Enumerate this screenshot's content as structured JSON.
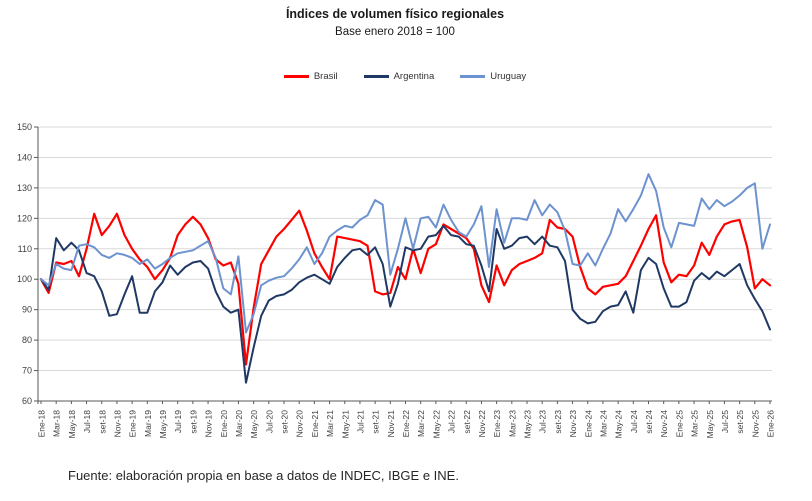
{
  "title": "Índices de volumen físico regionales",
  "subtitle": "Base enero 2018 = 100",
  "footer": "Fuente: elaboración propia en base a datos de INDEC, IBGE e INE.",
  "legend": [
    {
      "label": "Brasil",
      "color": "#FF0000"
    },
    {
      "label": "Argentina",
      "color": "#1F3864"
    },
    {
      "label": "Uruguay",
      "color": "#6C92CF"
    }
  ],
  "colors": {
    "brasil": "#FF0000",
    "argentina": "#1F3864",
    "uruguay": "#6C92CF",
    "gridline": "#D9D9D9",
    "axis": "#595959",
    "tick_text": "#404040"
  },
  "chart_data": {
    "type": "line",
    "title": "Índices de volumen físico regionales",
    "subtitle": "Base enero 2018 = 100",
    "xlabel": "",
    "ylabel": "",
    "ylim": [
      60,
      150
    ],
    "ytick_step": 10,
    "yticks": [
      150,
      140,
      130,
      120,
      110,
      100,
      90,
      80,
      70,
      60
    ],
    "grid": "horizontal",
    "legend_position": "top",
    "x_start": "Ene-18",
    "x_end": "Ene-26",
    "x_frequency": "monthly",
    "x_tick_labels": [
      "Ene-18",
      "Mar-18",
      "May-18",
      "Jul-18",
      "set-18",
      "Nov-18",
      "Ene-19",
      "Mar-19",
      "May-19",
      "Jul-19",
      "set-19",
      "Nov-19",
      "Ene-20",
      "Mar-20",
      "May-20",
      "Jul-20",
      "set-20",
      "Nov-20",
      "Ene-21",
      "Mar-21",
      "May-21",
      "Jul-21",
      "set-21",
      "Nov-21",
      "Ene-22",
      "Mar-22",
      "May-22",
      "Jul-22",
      "set-22",
      "Nov-22",
      "Ene-23",
      "Mar-23",
      "May-23",
      "Jul-23",
      "set-23",
      "Nov-23",
      "Ene-24",
      "Mar-24",
      "May-24",
      "Jul-24",
      "set-24",
      "Nov-24",
      "Ene-25",
      "Mar-25",
      "May-25",
      "Jul-25",
      "set-25",
      "Nov-25",
      "Ene-26"
    ],
    "series": [
      {
        "name": "Brasil",
        "color": "#FF0000",
        "values": [
          100,
          95.5,
          105.5,
          105,
          106,
          101,
          110,
          121.5,
          114.5,
          117.5,
          121.5,
          114.5,
          110,
          106.5,
          104,
          100,
          103,
          107,
          114.5,
          118,
          120.5,
          118,
          113.5,
          106.5,
          104.5,
          105.5,
          98.5,
          72,
          90.5,
          105,
          109.5,
          114,
          116.5,
          119.5,
          122.5,
          116,
          108.5,
          104,
          100,
          114,
          113.5,
          113,
          112.5,
          111,
          96,
          95,
          95.5,
          104,
          100,
          110,
          102,
          110,
          111.5,
          118,
          116.5,
          115,
          113.5,
          110,
          98,
          92.5,
          104.5,
          98,
          103,
          105,
          106,
          107,
          108.5,
          119.5,
          117,
          116.5,
          114,
          104,
          97,
          95,
          97.5,
          98,
          98.5,
          101,
          106,
          111,
          116.5,
          121,
          105.5,
          99,
          101.5,
          101,
          104.5,
          112,
          108,
          114,
          118,
          119,
          119.5,
          110.5,
          97,
          100,
          98
        ]
      },
      {
        "name": "Argentina",
        "color": "#1F3864",
        "values": [
          100,
          96.5,
          113.5,
          109.5,
          112,
          109.5,
          102,
          101,
          96,
          88,
          88.5,
          95,
          101,
          89,
          89,
          96,
          99,
          104.5,
          101.5,
          104,
          105.5,
          106,
          103.5,
          96,
          91,
          89,
          90,
          66,
          77.5,
          88,
          93,
          94.5,
          95,
          96.5,
          99,
          100.5,
          101.5,
          100,
          98.5,
          104,
          107,
          109.5,
          110,
          108,
          110.5,
          105,
          91,
          98.5,
          110.5,
          109.5,
          110,
          114,
          114.5,
          117.5,
          114.5,
          114,
          111.5,
          111,
          104.5,
          96,
          116.5,
          110,
          111,
          113.5,
          114,
          111.5,
          114,
          111,
          110.5,
          106,
          90,
          87,
          85.5,
          86,
          89.5,
          91,
          91.5,
          96,
          89,
          103,
          107,
          105,
          97,
          91,
          91,
          92.5,
          99.5,
          102,
          100,
          102.5,
          101,
          103,
          105,
          98,
          93.5,
          89.5,
          83.5
        ]
      },
      {
        "name": "Uruguay",
        "color": "#6C92CF",
        "values": [
          100,
          98,
          105,
          103.5,
          103,
          111,
          111.5,
          110.5,
          108,
          107,
          108.5,
          108,
          107,
          105,
          106.5,
          103.5,
          105,
          107,
          108.5,
          109,
          109.5,
          111,
          112.5,
          107,
          97,
          95,
          107.5,
          82.5,
          88.5,
          98,
          99.5,
          100.5,
          101,
          103.5,
          106.5,
          110.5,
          105,
          108.5,
          114,
          116,
          117.5,
          117,
          119.5,
          121,
          126,
          124.5,
          101.5,
          110,
          120,
          110,
          120,
          120.5,
          117,
          124.5,
          119.5,
          115.5,
          114,
          118,
          124,
          104,
          123,
          112,
          120,
          120,
          119.5,
          126,
          121,
          124.5,
          122,
          116,
          105,
          104.5,
          108.5,
          104.5,
          110,
          115,
          123,
          119,
          123,
          127.5,
          134.5,
          129,
          117,
          110.5,
          118.5,
          118,
          117.5,
          126.5,
          123,
          126,
          124,
          125.5,
          127.5,
          130,
          131.5,
          110,
          118
        ]
      }
    ]
  }
}
